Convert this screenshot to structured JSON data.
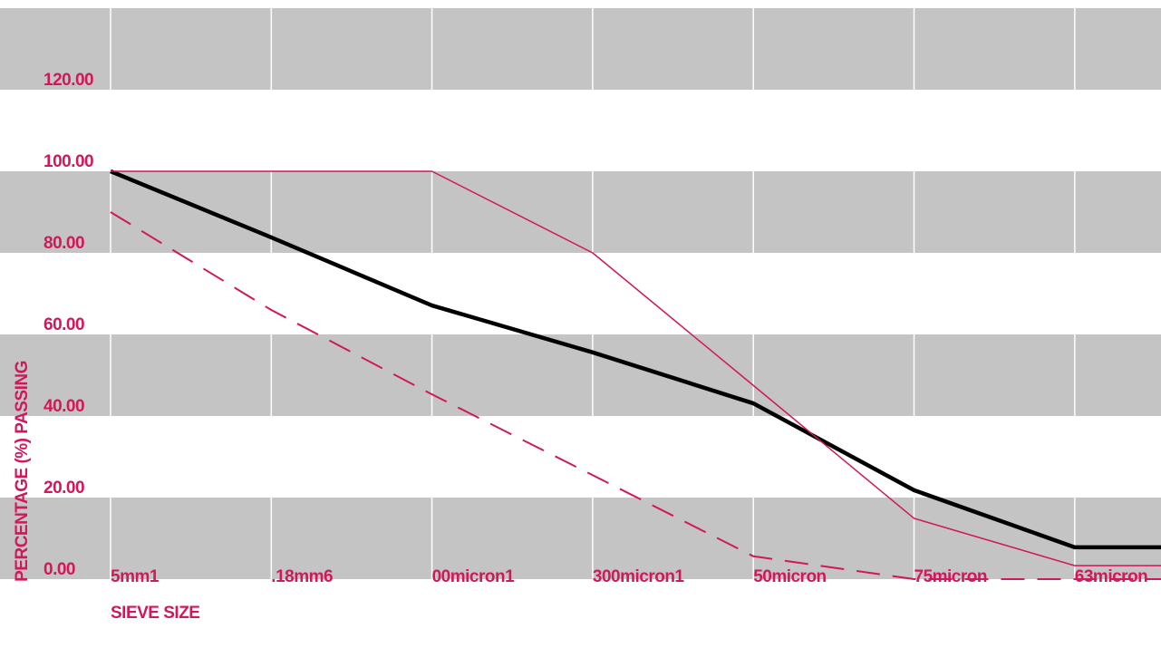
{
  "chart_data": {
    "type": "line",
    "x_label": "SIEVE SIZE",
    "y_label": "PERCENTAGE (%) PASSING",
    "categories": [
      "5mm1",
      ".18mm6",
      "00micron1",
      "300micron1",
      "50micron",
      "75micron",
      "63micron",
      null
    ],
    "series": [
      {
        "color": "#000000",
        "dashed": false,
        "values": [
          100,
          83.8,
          67.1,
          55.6,
          43.1,
          21.8,
          7.8,
          7.8
        ]
      },
      {
        "color": "#d0185a",
        "dashed": false,
        "values": [
          100,
          100,
          100,
          80,
          47.5,
          14.9,
          3.3,
          3.3
        ]
      },
      {
        "color": "#d0185a",
        "dashed": true,
        "values": [
          90,
          66,
          45.3,
          25.5,
          5.6,
          0,
          0,
          0
        ]
      }
    ],
    "ylim": [
      0,
      140
    ],
    "yticks": [
      {
        "value": 0,
        "label": "0.00"
      },
      {
        "value": 20,
        "label": "20.00"
      },
      {
        "value": 40,
        "label": "40.00"
      },
      {
        "value": 60,
        "label": "60.00"
      },
      {
        "value": 80,
        "label": "80.00"
      },
      {
        "value": 100,
        "label": "100.00"
      },
      {
        "value": 120,
        "label": "120.00"
      }
    ],
    "band_color": "#c4c4c4",
    "grid": true
  }
}
